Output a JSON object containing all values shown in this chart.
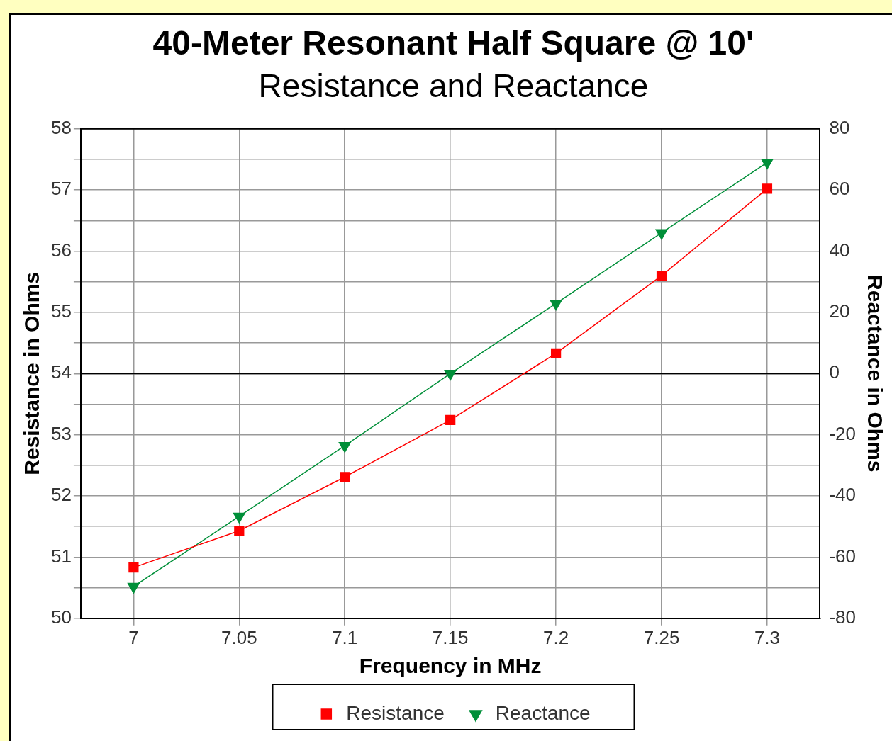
{
  "chart_data": {
    "type": "line",
    "title": "40-Meter Resonant Half Square @ 10'",
    "subtitle": "Resistance and Reactance",
    "xlabel": "Frequency in MHz",
    "ylabel": "Resistance in Ohms",
    "y2label": "Reactance in Ohms",
    "x": [
      7,
      7.05,
      7.1,
      7.15,
      7.2,
      7.25,
      7.3
    ],
    "xlim": [
      6.975,
      7.325
    ],
    "xticks": [
      7,
      7.05,
      7.1,
      7.15,
      7.2,
      7.25,
      7.3
    ],
    "ylim": [
      50,
      58
    ],
    "yticks": [
      50,
      {
        "value": 50.5,
        "label": null
      },
      51,
      {
        "value": 51.5,
        "label": null
      },
      52,
      {
        "value": 52.5,
        "label": null
      },
      53,
      {
        "value": 53.5,
        "label": null
      },
      54,
      {
        "value": 54.5,
        "label": null
      },
      55,
      {
        "value": 55.5,
        "label": null
      },
      56,
      {
        "value": 56.5,
        "label": null
      },
      57,
      {
        "value": 57.5,
        "label": null
      },
      58
    ],
    "y2lim": [
      -80,
      80
    ],
    "y2ticks": [
      -80,
      -60,
      -40,
      -20,
      0,
      20,
      40,
      60,
      80
    ],
    "series": [
      {
        "name": "Resistance",
        "color": "#ff0000",
        "marker": "square",
        "values": [
          50.83,
          51.43,
          52.31,
          53.24,
          54.33,
          55.6,
          57.02
        ]
      },
      {
        "name": "Reactance",
        "color": "#008f39",
        "marker": "triangle",
        "axis": "y2",
        "values": [
          -69.6,
          -46.7,
          -23.6,
          0,
          22.9,
          46,
          69
        ]
      }
    ],
    "ref_lines": [
      {
        "axis": "y2",
        "value": 0,
        "color": "#000000"
      }
    ],
    "grid": true,
    "legend": "bottom",
    "line_style": "solid"
  }
}
